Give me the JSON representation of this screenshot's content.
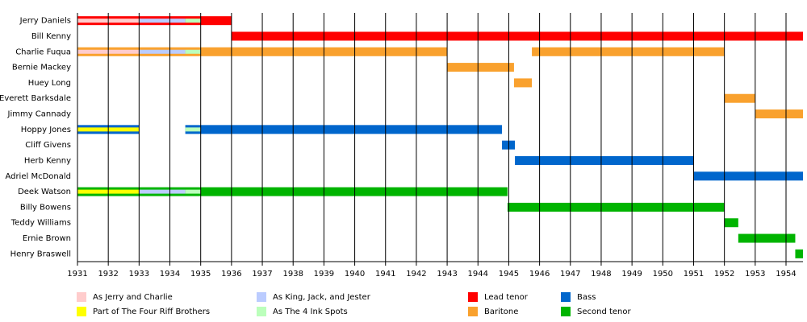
{
  "chart_data": {
    "type": "timeline",
    "xlim": [
      1931,
      1954.55
    ],
    "xticks": [
      1931,
      1932,
      1933,
      1934,
      1935,
      1936,
      1937,
      1938,
      1939,
      1940,
      1941,
      1942,
      1943,
      1944,
      1945,
      1946,
      1947,
      1948,
      1949,
      1950,
      1951,
      1952,
      1953,
      1954
    ],
    "grid": true,
    "series": [
      {
        "name": "Lead tenor",
        "color": "#ff0000"
      },
      {
        "name": "Baritone",
        "color": "#f9a12e"
      },
      {
        "name": "Bass",
        "color": "#0066cc"
      },
      {
        "name": "Second tenor",
        "color": "#00b400"
      }
    ],
    "periods": [
      {
        "name": "As Jerry and Charlie",
        "color": "#ffcccc"
      },
      {
        "name": "Part of The Four Riff Brothers",
        "color": "#ffff00"
      },
      {
        "name": "As King, Jack, and Jester",
        "color": "#bbccff"
      },
      {
        "name": "As The 4 Ink Spots",
        "color": "#bbffbb"
      }
    ],
    "rows": [
      {
        "name": "Jerry Daniels",
        "spans": [
          {
            "start": 1931,
            "end": 1936,
            "series": 0
          }
        ],
        "stripes": [
          {
            "start": 1931,
            "end": 1933,
            "period": 0
          },
          {
            "start": 1933,
            "end": 1934.5,
            "period": 2
          },
          {
            "start": 1934.5,
            "end": 1935,
            "period": 3
          }
        ]
      },
      {
        "name": "Bill Kenny",
        "spans": [
          {
            "start": 1936,
            "end": 1954.55,
            "series": 0
          }
        ],
        "stripes": []
      },
      {
        "name": "Charlie Fuqua",
        "spans": [
          {
            "start": 1931,
            "end": 1943,
            "series": 1
          },
          {
            "start": 1945.75,
            "end": 1952,
            "series": 1
          }
        ],
        "stripes": [
          {
            "start": 1931,
            "end": 1933,
            "period": 0
          },
          {
            "start": 1933,
            "end": 1934.5,
            "period": 2
          },
          {
            "start": 1934.5,
            "end": 1935,
            "period": 3
          }
        ]
      },
      {
        "name": "Bernie Mackey",
        "spans": [
          {
            "start": 1943,
            "end": 1945.17,
            "series": 1
          }
        ],
        "stripes": []
      },
      {
        "name": "Huey Long",
        "spans": [
          {
            "start": 1945.17,
            "end": 1945.75,
            "series": 1
          }
        ],
        "stripes": []
      },
      {
        "name": "Everett Barksdale",
        "spans": [
          {
            "start": 1952,
            "end": 1953,
            "series": 1
          }
        ],
        "stripes": []
      },
      {
        "name": "Jimmy Cannady",
        "spans": [
          {
            "start": 1953,
            "end": 1954.55,
            "series": 1
          }
        ],
        "stripes": []
      },
      {
        "name": "Hoppy Jones",
        "spans": [
          {
            "start": 1931,
            "end": 1933,
            "series": 2
          },
          {
            "start": 1934.5,
            "end": 1944.78,
            "series": 2
          }
        ],
        "stripes": [
          {
            "start": 1931,
            "end": 1933,
            "period": 1
          },
          {
            "start": 1934.5,
            "end": 1935,
            "period": 3
          }
        ]
      },
      {
        "name": "Cliff Givens",
        "spans": [
          {
            "start": 1944.78,
            "end": 1945.2,
            "series": 2
          }
        ],
        "stripes": []
      },
      {
        "name": "Herb Kenny",
        "spans": [
          {
            "start": 1945.2,
            "end": 1951,
            "series": 2
          }
        ],
        "stripes": []
      },
      {
        "name": "Adriel McDonald",
        "spans": [
          {
            "start": 1951,
            "end": 1954.55,
            "series": 2
          }
        ],
        "stripes": []
      },
      {
        "name": "Deek Watson",
        "spans": [
          {
            "start": 1931,
            "end": 1944.96,
            "series": 3
          }
        ],
        "stripes": [
          {
            "start": 1931,
            "end": 1933,
            "period": 1
          },
          {
            "start": 1933,
            "end": 1934.5,
            "period": 2
          },
          {
            "start": 1934.5,
            "end": 1935,
            "period": 3
          }
        ]
      },
      {
        "name": "Billy Bowens",
        "spans": [
          {
            "start": 1944.96,
            "end": 1952,
            "series": 3
          }
        ],
        "stripes": []
      },
      {
        "name": "Teddy Williams",
        "spans": [
          {
            "start": 1952,
            "end": 1952.45,
            "series": 3
          }
        ],
        "stripes": []
      },
      {
        "name": "Ernie Brown",
        "spans": [
          {
            "start": 1952.45,
            "end": 1954.3,
            "series": 3
          }
        ],
        "stripes": []
      },
      {
        "name": "Henry Braswell",
        "spans": [
          {
            "start": 1954.3,
            "end": 1954.55,
            "series": 3
          }
        ],
        "stripes": []
      }
    ]
  }
}
